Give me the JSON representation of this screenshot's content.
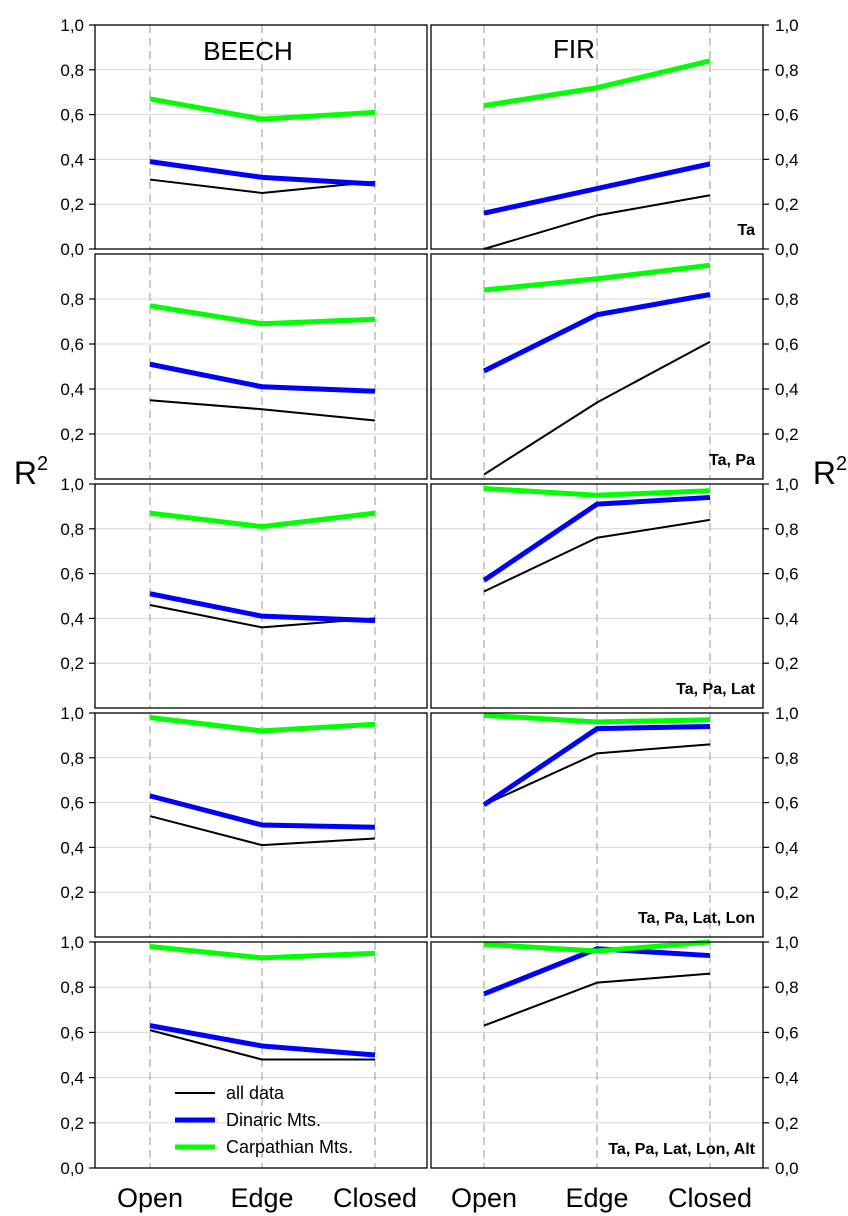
{
  "chart_data": {
    "type": "line",
    "categories": [
      "Open",
      "Edge",
      "Closed"
    ],
    "columns": [
      "BEECH",
      "FIR"
    ],
    "ylabel": "R",
    "ylabel_sup": "2",
    "ylim": [
      0,
      1
    ],
    "yticks": [
      "0,0",
      "0,2",
      "0,4",
      "0,6",
      "0,8",
      "1,0"
    ],
    "grid": true,
    "legend": {
      "placement": "bottom-left panel",
      "entries": [
        {
          "name": "all data",
          "color": "#000000",
          "width": 2
        },
        {
          "name": "Dinaric Mts.",
          "color": "#0000ff",
          "width": 5
        },
        {
          "name": "Carpathian Mts.",
          "color": "#00ff00",
          "width": 5
        }
      ]
    },
    "rows": [
      {
        "label": "Ta",
        "tick_labels": {
          "left": [
            "0,0",
            "0,2",
            "0,4",
            "0,6",
            "0,8",
            "1,0"
          ],
          "right": [
            "0,0",
            "0,2",
            "0,4",
            "0,6",
            "0,8",
            "1,0"
          ]
        },
        "beech": {
          "all data": [
            0.31,
            0.25,
            0.3
          ],
          "Dinaric Mts.": [
            0.39,
            0.32,
            0.29
          ],
          "Carpathian Mts.": [
            0.67,
            0.58,
            0.61
          ]
        },
        "fir": {
          "all data": [
            0.0,
            0.15,
            0.24
          ],
          "Dinaric Mts.": [
            0.16,
            0.27,
            0.38
          ],
          "Carpathian Mts.": [
            0.64,
            0.72,
            0.84
          ]
        }
      },
      {
        "label": "Ta, Pa",
        "tick_labels": {
          "left": [
            "0,2",
            "0,4",
            "0,6",
            "0,8"
          ],
          "right": [
            "0,2",
            "0,4",
            "0,6",
            "0,8"
          ]
        },
        "beech": {
          "all data": [
            0.35,
            0.31,
            0.26
          ],
          "Dinaric Mts.": [
            0.51,
            0.41,
            0.39
          ],
          "Carpathian Mts.": [
            0.77,
            0.69,
            0.71
          ]
        },
        "fir": {
          "all data": [
            0.02,
            0.34,
            0.61
          ],
          "Dinaric Mts.": [
            0.48,
            0.73,
            0.82
          ],
          "Carpathian Mts.": [
            0.84,
            0.89,
            0.95
          ]
        }
      },
      {
        "label": "Ta, Pa, Lat",
        "tick_labels": {
          "left": [
            "0,2",
            "0,4",
            "0,6",
            "0,8",
            "1,0"
          ],
          "right": [
            "0,2",
            "0,4",
            "0,6",
            "0,8",
            "1,0"
          ]
        },
        "beech": {
          "all data": [
            0.46,
            0.36,
            0.4
          ],
          "Dinaric Mts.": [
            0.51,
            0.41,
            0.39
          ],
          "Carpathian Mts.": [
            0.87,
            0.81,
            0.87
          ]
        },
        "fir": {
          "all data": [
            0.52,
            0.76,
            0.84
          ],
          "Dinaric Mts.": [
            0.57,
            0.91,
            0.94
          ],
          "Carpathian Mts.": [
            0.98,
            0.95,
            0.97
          ]
        }
      },
      {
        "label": "Ta, Pa, Lat, Lon",
        "tick_labels": {
          "left": [
            "0,2",
            "0,4",
            "0,6",
            "0,8",
            "1,0"
          ],
          "right": [
            "0,2",
            "0,4",
            "0,6",
            "0,8",
            "1,0"
          ]
        },
        "beech": {
          "all data": [
            0.54,
            0.41,
            0.44
          ],
          "Dinaric Mts.": [
            0.63,
            0.5,
            0.49
          ],
          "Carpathian Mts.": [
            0.98,
            0.92,
            0.95
          ]
        },
        "fir": {
          "all data": [
            0.59,
            0.82,
            0.86
          ],
          "Dinaric Mts.": [
            0.59,
            0.93,
            0.94
          ],
          "Carpathian Mts.": [
            0.99,
            0.96,
            0.97
          ]
        }
      },
      {
        "label": "Ta, Pa, Lat, Lon, Alt",
        "tick_labels": {
          "left": [
            "0,0",
            "0,2",
            "0,4",
            "0,6",
            "0,8",
            "1,0"
          ],
          "right": [
            "0,0",
            "0,2",
            "0,4",
            "0,6",
            "0,8",
            "1,0"
          ]
        },
        "beech": {
          "all data": [
            0.61,
            0.48,
            0.48
          ],
          "Dinaric Mts.": [
            0.63,
            0.54,
            0.5
          ],
          "Carpathian Mts.": [
            0.98,
            0.93,
            0.95
          ]
        },
        "fir": {
          "all data": [
            0.63,
            0.82,
            0.86
          ],
          "Dinaric Mts.": [
            0.77,
            0.97,
            0.94
          ],
          "Carpathian Mts.": [
            0.99,
            0.96,
            1.0
          ]
        }
      }
    ]
  }
}
